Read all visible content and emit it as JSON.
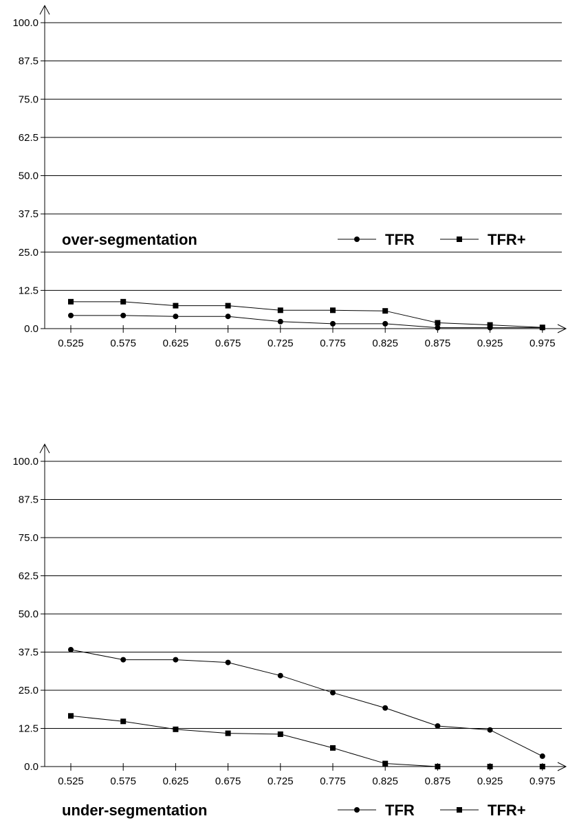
{
  "chart_data": [
    {
      "type": "line",
      "caption": "over-segmentation",
      "x": [
        "0.525",
        "0.575",
        "0.625",
        "0.675",
        "0.725",
        "0.775",
        "0.825",
        "0.875",
        "0.925",
        "0.975"
      ],
      "yticks": [
        "0.0",
        "12.5",
        "25.0",
        "37.5",
        "50.0",
        "62.5",
        "75.0",
        "87.5",
        "100.0"
      ],
      "ylim": [
        0,
        100
      ],
      "grid": true,
      "legend_placement": "bottom-right",
      "series": [
        {
          "name": "TFR",
          "marker": "circle",
          "values": [
            4.3,
            4.3,
            4.0,
            4.0,
            2.3,
            1.6,
            1.6,
            0.3,
            0.3,
            0.3
          ]
        },
        {
          "name": "TFR+",
          "marker": "square",
          "values": [
            8.8,
            8.8,
            7.5,
            7.5,
            6.0,
            6.0,
            5.8,
            1.9,
            1.2,
            0.4
          ]
        }
      ]
    },
    {
      "type": "line",
      "caption": "under-segmentation",
      "x": [
        "0.525",
        "0.575",
        "0.625",
        "0.675",
        "0.725",
        "0.775",
        "0.825",
        "0.875",
        "0.925",
        "0.975"
      ],
      "yticks": [
        "0.0",
        "12.5",
        "25.0",
        "37.5",
        "50.0",
        "62.5",
        "75.0",
        "87.5",
        "100.0"
      ],
      "ylim": [
        0,
        100
      ],
      "grid": true,
      "legend_placement": "bottom-right",
      "series": [
        {
          "name": "TFR",
          "marker": "circle",
          "values": [
            38.3,
            35.0,
            35.0,
            34.1,
            29.8,
            24.2,
            19.2,
            13.3,
            12.0,
            3.4
          ]
        },
        {
          "name": "TFR+",
          "marker": "square",
          "values": [
            16.6,
            14.8,
            12.2,
            10.9,
            10.6,
            6.1,
            1.0,
            0.0,
            0.0,
            0.0
          ]
        }
      ]
    }
  ]
}
